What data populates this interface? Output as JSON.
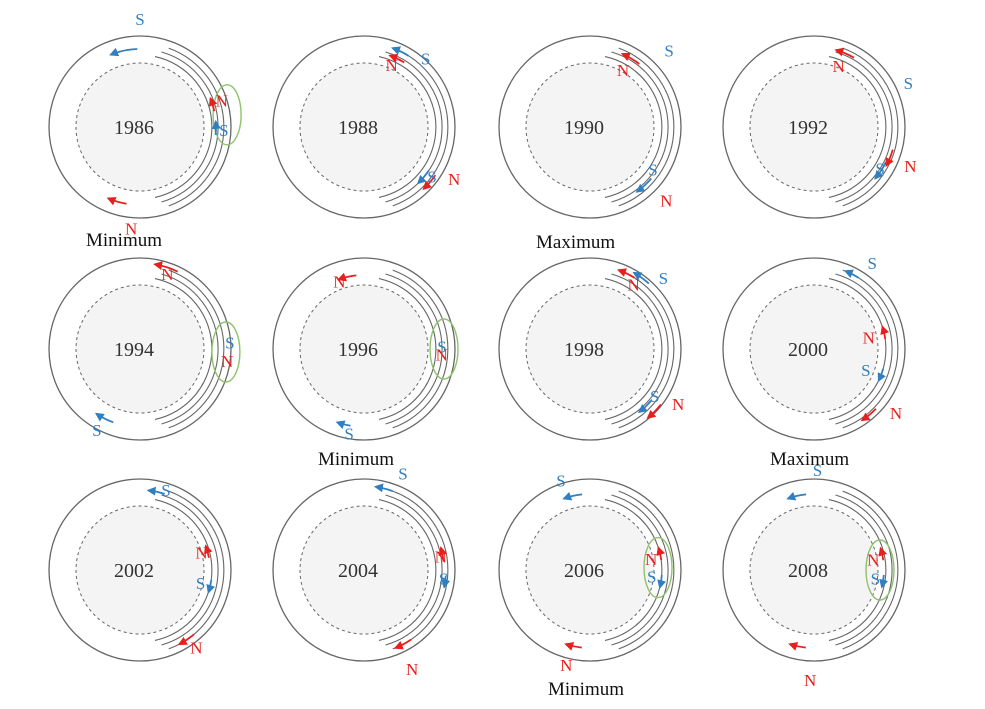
{
  "colors": {
    "north": "#e8201d",
    "south": "#2f7fc1",
    "outline": "#666666",
    "core_fill": "#f4f4f4",
    "highlight": "#8dc36b",
    "text": "#333333"
  },
  "north_label": "N",
  "south_label": "S",
  "panels": [
    {
      "year": "1986",
      "caption": "Minimum",
      "highlight": true
    },
    {
      "year": "1988",
      "caption": "",
      "highlight": false
    },
    {
      "year": "1990",
      "caption": "Maximum",
      "highlight": false
    },
    {
      "year": "1992",
      "caption": "",
      "highlight": false
    },
    {
      "year": "1994",
      "caption": "",
      "highlight": true
    },
    {
      "year": "1996",
      "caption": "Minimum",
      "highlight": true
    },
    {
      "year": "1998",
      "caption": "",
      "highlight": false
    },
    {
      "year": "2000",
      "caption": "Maximum",
      "highlight": false
    },
    {
      "year": "2002",
      "caption": "",
      "highlight": false
    },
    {
      "year": "2004",
      "caption": "",
      "highlight": false
    },
    {
      "year": "2006",
      "caption": "Minimum",
      "highlight": true
    },
    {
      "year": "2008",
      "caption": "",
      "highlight": true
    }
  ]
}
